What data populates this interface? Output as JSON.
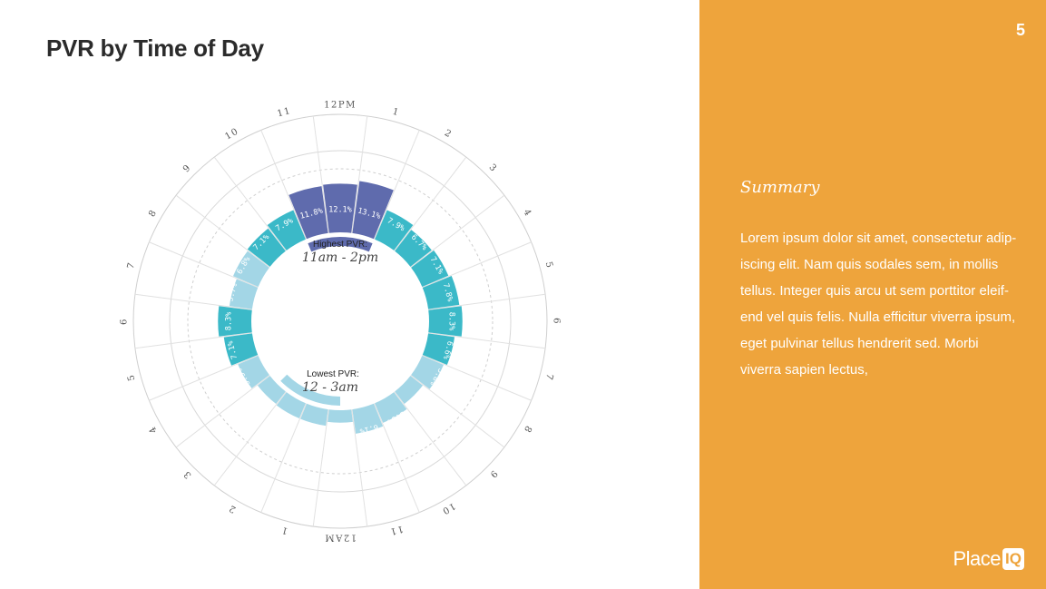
{
  "slide": {
    "title": "PVR by Time of Day",
    "page_number": "5"
  },
  "summary": {
    "title": "Summary",
    "body": "Lorem ipsum dolor sit amet, consectetur adip-iscing elit. Nam quis sodales sem, in mollis tellus. Integer quis arcu ut sem porttitor eleif-end vel quis felis. Nulla efficitur viverra ipsum, eget pulvinar tellus hendrerit sed. Morbi viverra sapien lectus,"
  },
  "logo": {
    "text_main": "Place",
    "text_badge": "IQ"
  },
  "colors": {
    "accent_panel": "#eea43c",
    "high": "#5f6bad",
    "mid": "#3bb9c8",
    "low": "#a3d6e6"
  },
  "chart_data": {
    "type": "radial-bar",
    "title": "PVR by Time of Day",
    "hours": [
      "12PM",
      "1",
      "2",
      "3",
      "4",
      "5",
      "6",
      "7",
      "8",
      "9",
      "10",
      "11",
      "12AM",
      "1",
      "2",
      "3",
      "4",
      "5",
      "6",
      "7",
      "8",
      "9",
      "10",
      "11"
    ],
    "series": [
      {
        "values": [
          12.1,
          13.1,
          7.9,
          6.7,
          7.1,
          7.8,
          8.3,
          6.6,
          5.8,
          3.9,
          5.3,
          6.1,
          3.1,
          4.1,
          4.1,
          3.9,
          5.5,
          7.1,
          8.3,
          5.7,
          6.8,
          7.1,
          7.9,
          11.8
        ],
        "labels": [
          "12.1%",
          "13.1%",
          "7.9%",
          "6.7%",
          "7.1%",
          "7.8%",
          "8.3%",
          "6.6%",
          "5.8%",
          "3.9%",
          "5.3%",
          "6.1%",
          "3.1%",
          "4.1%",
          "4.1%",
          "3.9%",
          "5.5%",
          "7.1%",
          "8.3%",
          "5.7%",
          "6.8%",
          "7.1%",
          "7.9%",
          "11.8%"
        ],
        "tiers": [
          "high",
          "high",
          "mid",
          "mid",
          "mid",
          "mid",
          "mid",
          "mid",
          "low",
          "low",
          "low",
          "low",
          "low",
          "low",
          "low",
          "low",
          "low",
          "mid",
          "mid",
          "low",
          "low",
          "mid",
          "mid",
          "high"
        ]
      }
    ],
    "annotations": {
      "highest_label": "Highest PVR:",
      "highest_value": "11am - 2pm",
      "lowest_label": "Lowest PVR:",
      "lowest_value": "12 - 3am"
    }
  }
}
